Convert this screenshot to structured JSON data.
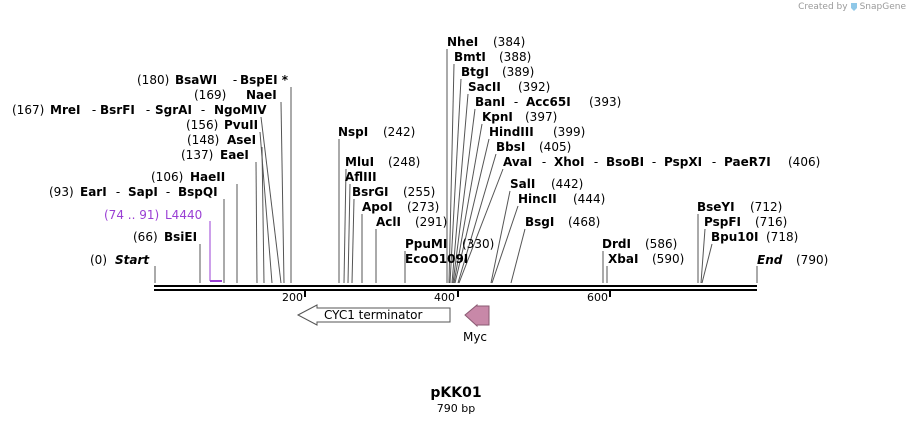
{
  "credit": {
    "prefix": "Created by",
    "brand": "SnapGene",
    "icon": "snapgene-logo-icon"
  },
  "map": {
    "name": "pKK01",
    "length_label": "790 bp",
    "length_bp": 790,
    "start_label": "Start",
    "start_pos": "(0)",
    "end_label": "End",
    "end_pos": "(790)"
  },
  "enzymes": [
    {
      "names": [
        "BsaWI",
        "BspEI *"
      ],
      "pos": "(180)"
    },
    {
      "names": [
        "NaeI"
      ],
      "pos": "(169)"
    },
    {
      "names": [
        "MreI",
        "BsrFI",
        "SgrAI",
        "NgoMIV"
      ],
      "pos": "(167)"
    },
    {
      "names": [
        "PvuII"
      ],
      "pos": "(156)"
    },
    {
      "names": [
        "AseI"
      ],
      "pos": "(148)"
    },
    {
      "names": [
        "EaeI"
      ],
      "pos": "(137)"
    },
    {
      "names": [
        "HaeII"
      ],
      "pos": "(106)"
    },
    {
      "names": [
        "EarI",
        "SapI",
        "BspQI"
      ],
      "pos": "(93)"
    },
    {
      "names": [
        "BsiEI"
      ],
      "pos": "(66)"
    },
    {
      "names": [
        "NspI"
      ],
      "pos": "(242)"
    },
    {
      "names": [
        "MluI"
      ],
      "pos": "(248)"
    },
    {
      "names": [
        "AflIII"
      ],
      "pos": ""
    },
    {
      "names": [
        "BsrGI"
      ],
      "pos": "(255)"
    },
    {
      "names": [
        "ApoI"
      ],
      "pos": "(273)"
    },
    {
      "names": [
        "AclI"
      ],
      "pos": "(291)"
    },
    {
      "names": [
        "PpuMI"
      ],
      "pos": "(330)"
    },
    {
      "names": [
        "EcoO109I"
      ],
      "pos": ""
    },
    {
      "names": [
        "NheI"
      ],
      "pos": "(384)"
    },
    {
      "names": [
        "BmtI"
      ],
      "pos": "(388)"
    },
    {
      "names": [
        "BtgI"
      ],
      "pos": "(389)"
    },
    {
      "names": [
        "SacII"
      ],
      "pos": "(392)"
    },
    {
      "names": [
        "BanI",
        "Acc65I"
      ],
      "pos": "(393)"
    },
    {
      "names": [
        "KpnI"
      ],
      "pos": "(397)"
    },
    {
      "names": [
        "HindIII"
      ],
      "pos": "(399)"
    },
    {
      "names": [
        "BbsI"
      ],
      "pos": "(405)"
    },
    {
      "names": [
        "AvaI",
        "XhoI",
        "BsoBI",
        "PspXI",
        "PaeR7I"
      ],
      "pos": "(406)"
    },
    {
      "names": [
        "SalI"
      ],
      "pos": "(442)"
    },
    {
      "names": [
        "HincII"
      ],
      "pos": "(444)"
    },
    {
      "names": [
        "BsgI"
      ],
      "pos": "(468)"
    },
    {
      "names": [
        "DrdI"
      ],
      "pos": "(586)"
    },
    {
      "names": [
        "XbaI"
      ],
      "pos": "(590)"
    },
    {
      "names": [
        "BseYI"
      ],
      "pos": "(712)"
    },
    {
      "names": [
        "PspFI"
      ],
      "pos": "(716)"
    },
    {
      "names": [
        "Bpu10I"
      ],
      "pos": "(718)"
    }
  ],
  "primer": {
    "name": "L4440",
    "range": "(74 .. 91)",
    "color": "#9a3fd4"
  },
  "features": [
    {
      "name": "CYC1 terminator",
      "direction": "reverse",
      "fill": "#ffffff"
    },
    {
      "name": "Myc",
      "direction": "reverse",
      "fill": "#c888a8"
    }
  ],
  "ticks": [
    "200",
    "400",
    "600"
  ]
}
